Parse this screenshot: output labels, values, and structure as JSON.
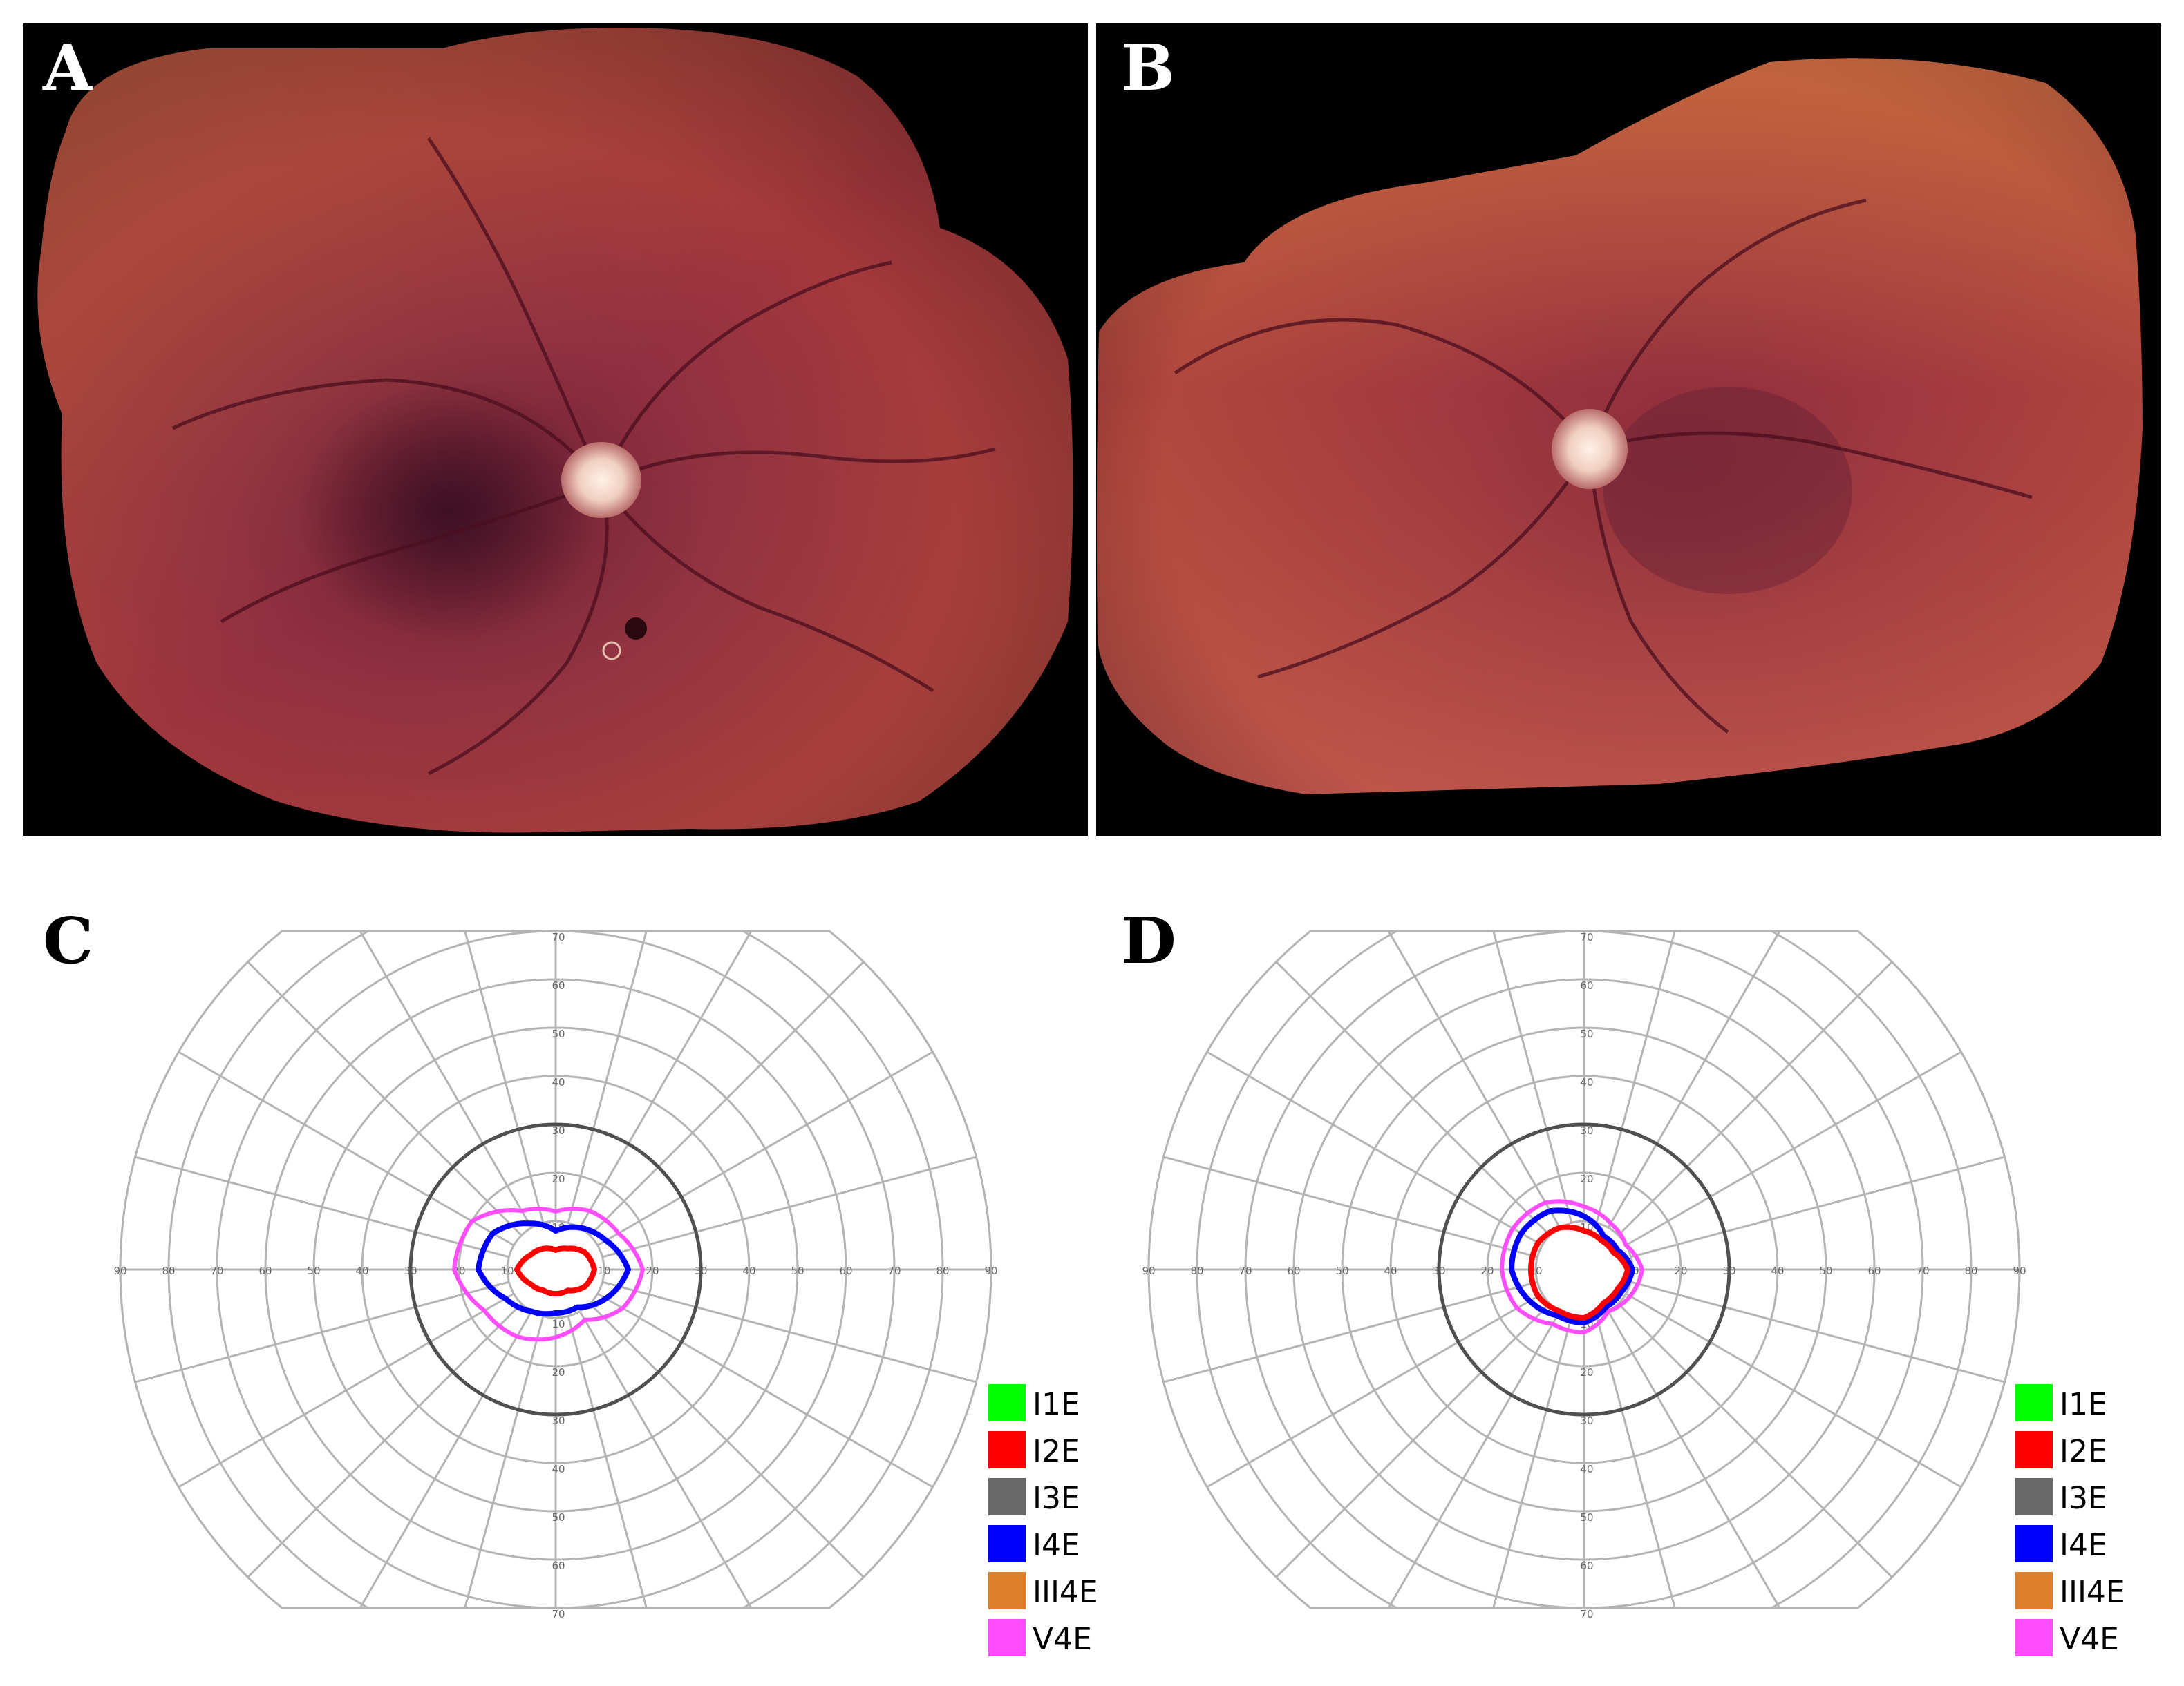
{
  "panels": {
    "A": {
      "letter": "A",
      "content": "fundus-photo"
    },
    "B": {
      "letter": "B",
      "content": "fundus-photo"
    },
    "C": {
      "letter": "C",
      "content": "perimetry-field"
    },
    "D": {
      "letter": "D",
      "content": "perimetry-field"
    }
  },
  "perimetry": {
    "horizontal_ticks": [
      "90",
      "80",
      "70",
      "60",
      "50",
      "40",
      "30",
      "20",
      "10",
      "10",
      "20",
      "30",
      "40",
      "50",
      "60",
      "70",
      "80",
      "90"
    ],
    "vertical_ticks_up": [
      "70",
      "60",
      "50",
      "40",
      "30",
      "20",
      "10"
    ],
    "vertical_ticks_down": [
      "10",
      "20",
      "30",
      "40",
      "50",
      "60",
      "70"
    ],
    "grid_color": "#b4b4b4",
    "highlight_ring_color": "#505050"
  },
  "legend": [
    {
      "label": "I1E",
      "color": "#00ff00"
    },
    {
      "label": "I2E",
      "color": "#ff0000"
    },
    {
      "label": "I3E",
      "color": "#6a6a6a"
    },
    {
      "label": "I4E",
      "color": "#0000ff"
    },
    {
      "label": "III4E",
      "color": "#e07f2a"
    },
    {
      "label": "V4E",
      "color": "#ff4dff"
    }
  ],
  "isopters": {
    "C": {
      "V4E": [
        [
          0,
          18
        ],
        [
          30,
          15
        ],
        [
          60,
          14
        ],
        [
          90,
          12
        ],
        [
          120,
          14
        ],
        [
          150,
          20
        ],
        [
          180,
          21
        ],
        [
          210,
          17
        ],
        [
          240,
          16
        ],
        [
          270,
          14
        ],
        [
          300,
          12
        ],
        [
          330,
          16
        ]
      ],
      "I4E": [
        [
          0,
          15
        ],
        [
          30,
          12
        ],
        [
          60,
          10
        ],
        [
          90,
          8
        ],
        [
          120,
          11
        ],
        [
          150,
          15
        ],
        [
          180,
          16
        ],
        [
          210,
          12
        ],
        [
          240,
          10
        ],
        [
          270,
          9
        ],
        [
          300,
          9
        ],
        [
          330,
          12
        ]
      ],
      "I2E": [
        [
          0,
          8
        ],
        [
          30,
          7
        ],
        [
          60,
          5
        ],
        [
          90,
          4
        ],
        [
          120,
          5
        ],
        [
          150,
          6
        ],
        [
          180,
          8
        ],
        [
          210,
          6
        ],
        [
          240,
          5
        ],
        [
          270,
          5
        ],
        [
          300,
          5
        ],
        [
          330,
          7
        ]
      ]
    },
    "D": {
      "V4E": [
        [
          0,
          12
        ],
        [
          30,
          10
        ],
        [
          60,
          11
        ],
        [
          90,
          13
        ],
        [
          120,
          16
        ],
        [
          150,
          17
        ],
        [
          180,
          17
        ],
        [
          210,
          16
        ],
        [
          240,
          13
        ],
        [
          270,
          13
        ],
        [
          300,
          10
        ],
        [
          330,
          11
        ]
      ],
      "I4E": [
        [
          0,
          10
        ],
        [
          30,
          8
        ],
        [
          60,
          8
        ],
        [
          90,
          11
        ],
        [
          120,
          14
        ],
        [
          150,
          15
        ],
        [
          180,
          15
        ],
        [
          210,
          13
        ],
        [
          240,
          11
        ],
        [
          270,
          11
        ],
        [
          300,
          9
        ],
        [
          330,
          9
        ]
      ],
      "I2E": [
        [
          0,
          9
        ],
        [
          30,
          7
        ],
        [
          60,
          7
        ],
        [
          90,
          8
        ],
        [
          120,
          10
        ],
        [
          150,
          11
        ],
        [
          180,
          11
        ],
        [
          210,
          11
        ],
        [
          240,
          10
        ],
        [
          270,
          10
        ],
        [
          300,
          8
        ],
        [
          330,
          8
        ]
      ]
    }
  }
}
